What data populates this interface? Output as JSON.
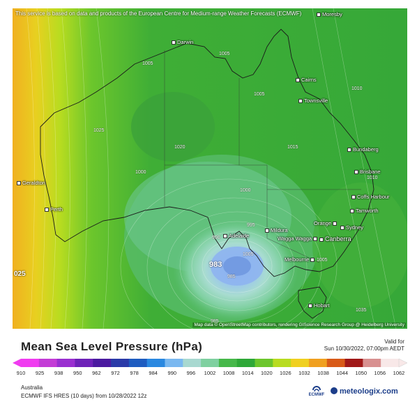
{
  "map": {
    "attribution_top": "This service is based on data and products of the European Centre for Medium-range Weather Forecasts (ECMWF)",
    "attribution_bottom": "Map data © OpenStreetMap contributors, rendering GIScience Research Group @ Heidelberg University",
    "low_center_label": "983",
    "edge_label": "025",
    "cities": [
      {
        "name": "Darwin"
      },
      {
        "name": "Moresby"
      },
      {
        "name": "Cairns"
      },
      {
        "name": "Townsville"
      },
      {
        "name": "Bundaberg"
      },
      {
        "name": "Brisbane"
      },
      {
        "name": "Coffs Harbour"
      },
      {
        "name": "Tamworth"
      },
      {
        "name": "Orange"
      },
      {
        "name": "Sydney"
      },
      {
        "name": "Canberra"
      },
      {
        "name": "Mildura"
      },
      {
        "name": "Wagga Wagga"
      },
      {
        "name": "Adelaide"
      },
      {
        "name": "Melbourne"
      },
      {
        "name": "Hobart"
      },
      {
        "name": "Geraldton"
      },
      {
        "name": "Perth"
      }
    ],
    "isobar_labels": [
      "1005",
      "1005",
      "1010",
      "1025",
      "1020",
      "1005",
      "1015",
      "1000",
      "1000",
      "995",
      "990",
      "985",
      "1005",
      "1035",
      "1010",
      "985",
      "1005"
    ]
  },
  "title": "Mean Sea Level Pressure (hPa)",
  "valid_label": "Valid for",
  "valid_time": "Sun 10/30/2022, 07:00pm AEDT",
  "scale": {
    "ticks": [
      "910",
      "925",
      "938",
      "950",
      "962",
      "972",
      "978",
      "984",
      "990",
      "996",
      "1002",
      "1008",
      "1014",
      "1020",
      "1026",
      "1032",
      "1038",
      "1044",
      "1050",
      "1056",
      "1062"
    ],
    "colors": [
      "#f03cf0",
      "#c33cd6",
      "#9a2fd0",
      "#6e22b8",
      "#4b1aa0",
      "#2a3aa8",
      "#1e5cc0",
      "#2a88e0",
      "#7ab8f0",
      "#a8d8d0",
      "#7fd0a0",
      "#46b84a",
      "#2ea838",
      "#6cc62c",
      "#b8dc20",
      "#f0d020",
      "#f0a020",
      "#d85a18",
      "#a01818",
      "#d89090",
      "#f8e8e8"
    ]
  },
  "footer": {
    "region": "Australia",
    "model": "ECMWF IFS HRES (10 days) from 10/28/2022 12z",
    "ecmwf_logo": "ECMWF",
    "brand": "meteologix.com"
  }
}
